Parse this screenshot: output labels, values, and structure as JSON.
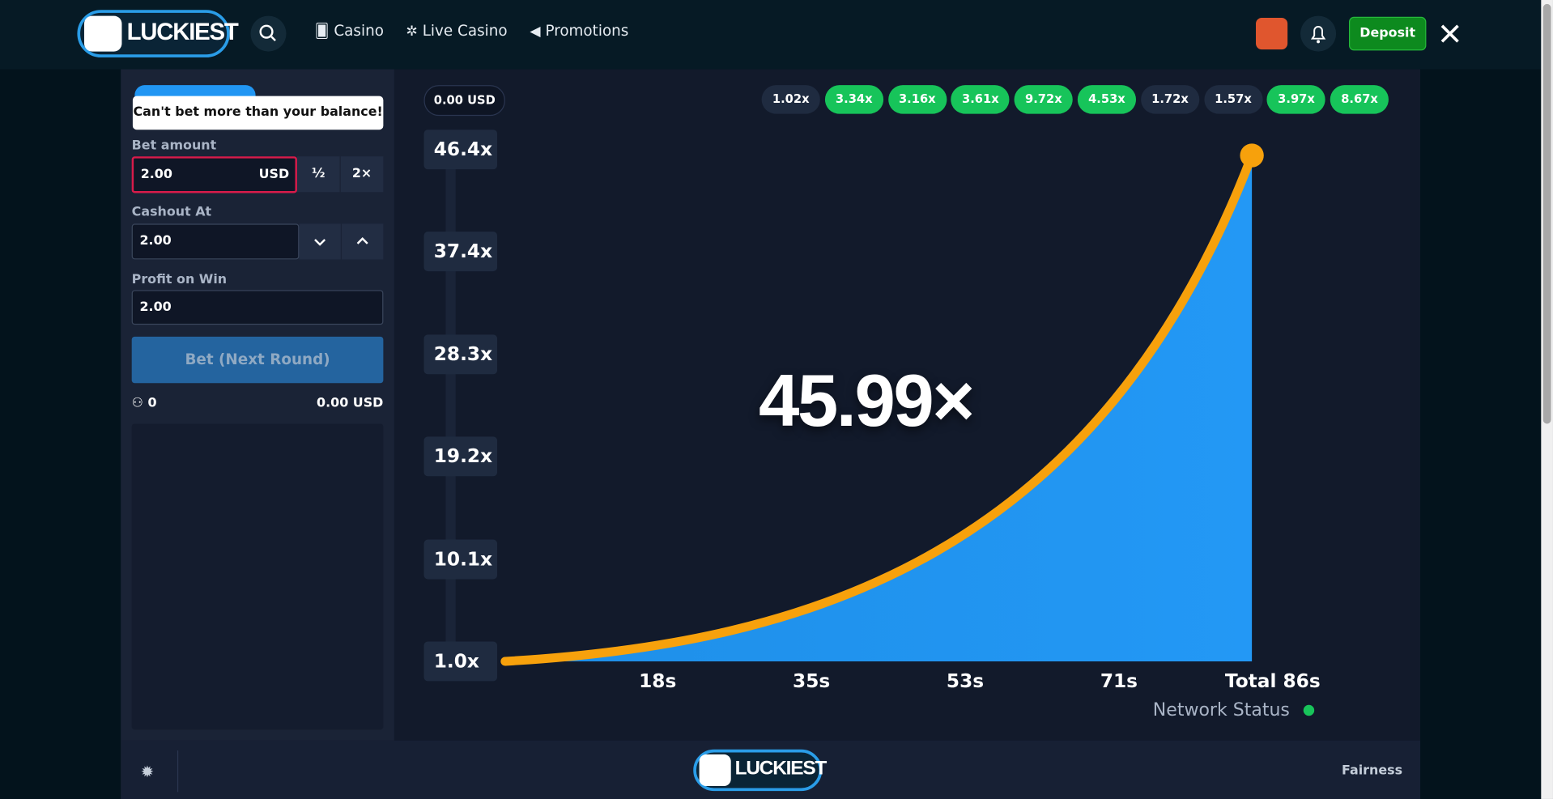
{
  "nav": {
    "logo": "LUCKIEST",
    "links": [
      "Casino",
      "Live Casino",
      "Promotions"
    ],
    "deposit": "Deposit"
  },
  "bet_panel": {
    "tooltip": "Can't bet more than your balance!",
    "bet_amount": {
      "label": "Bet amount",
      "value": "2.00",
      "currency": "USD",
      "half": "½",
      "double": "2×"
    },
    "cashout_at": {
      "label": "Cashout At",
      "value": "2.00"
    },
    "profit_on_win": {
      "label": "Profit on Win",
      "value": "2.00"
    },
    "bet_button": "Bet (Next Round)",
    "players": "0",
    "total": "0.00 USD"
  },
  "game": {
    "balance": "0.00 USD",
    "history": [
      {
        "label": "1.02x",
        "color": "#1f2b40"
      },
      {
        "label": "3.34x",
        "color": "#17c45a"
      },
      {
        "label": "3.16x",
        "color": "#17c45a"
      },
      {
        "label": "3.61x",
        "color": "#17c45a"
      },
      {
        "label": "9.72x",
        "color": "#17c45a"
      },
      {
        "label": "4.53x",
        "color": "#17c45a"
      },
      {
        "label": "1.72x",
        "color": "#1f2b40"
      },
      {
        "label": "1.57x",
        "color": "#1f2b40"
      },
      {
        "label": "3.97x",
        "color": "#17c45a"
      },
      {
        "label": "8.67x",
        "color": "#17c45a"
      }
    ],
    "y_labels": [
      "46.4x",
      "37.4x",
      "28.3x",
      "19.2x",
      "10.1x",
      "1.0x"
    ],
    "x_labels": [
      "18s",
      "35s",
      "53s",
      "71s",
      "Total 86s"
    ],
    "multiplier": "45.99×",
    "network_status": "Network Status"
  },
  "footer": {
    "logo": "LUCKIEST",
    "fairness": "Fairness"
  }
}
